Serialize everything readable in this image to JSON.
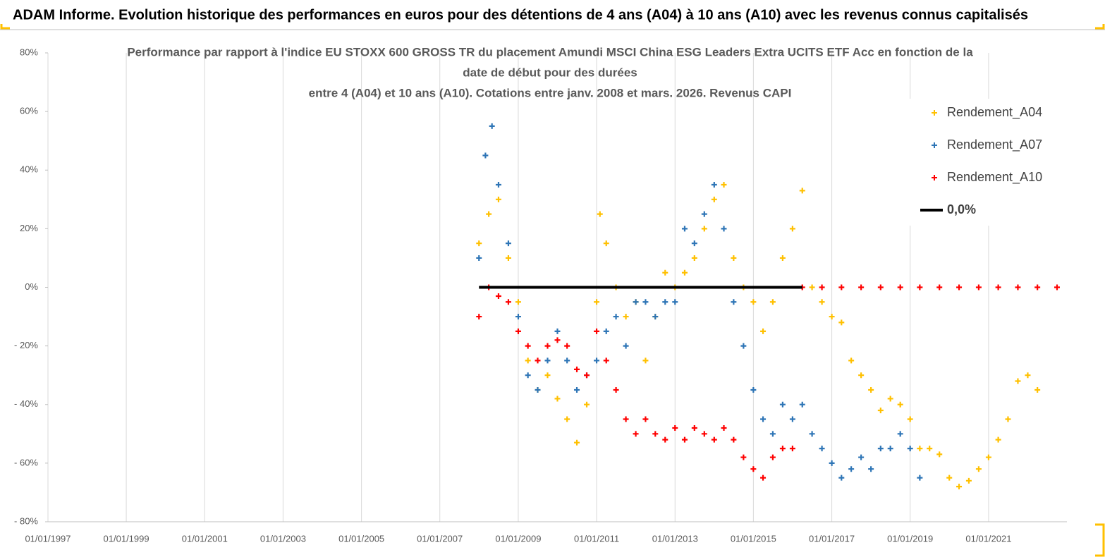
{
  "header": {
    "title": "ADAM Informe. Evolution historique des performances en euros pour des détentions de 4 ans (A04) à 10 ans (A10) avec les revenus connus capitalisés"
  },
  "chart_data": {
    "type": "scatter",
    "title_lines": [
      "Performance par rapport à l'indice EU STOXX 600 GROSS TR  du placement Amundi MSCI China ESG Leaders Extra UCITS ETF Acc en fonction de la",
      "date de début pour des durées",
      "entre 4 (A04) et 10 ans (A10). Cotations entre janv. 2008 et mars. 2026. Revenus CAPI"
    ],
    "xlim": [
      "1997-01-01",
      "2023-01-01"
    ],
    "xticks": [
      {
        "value": "1997-01-01",
        "label": "01/01/1997"
      },
      {
        "value": "1999-01-01",
        "label": "01/01/1999"
      },
      {
        "value": "2001-01-01",
        "label": "01/01/2001"
      },
      {
        "value": "2003-01-01",
        "label": "01/01/2003"
      },
      {
        "value": "2005-01-01",
        "label": "01/01/2005"
      },
      {
        "value": "2007-01-01",
        "label": "01/01/2007"
      },
      {
        "value": "2009-01-01",
        "label": "01/01/2009"
      },
      {
        "value": "2011-01-01",
        "label": "01/01/2011"
      },
      {
        "value": "2013-01-01",
        "label": "01/01/2013"
      },
      {
        "value": "2015-01-01",
        "label": "01/01/2015"
      },
      {
        "value": "2017-01-01",
        "label": "01/01/2017"
      },
      {
        "value": "2019-01-01",
        "label": "01/01/2019"
      },
      {
        "value": "2021-01-01",
        "label": "01/01/2021"
      }
    ],
    "ylim": [
      -80,
      80
    ],
    "yticks": [
      {
        "value": 80,
        "label": "80%"
      },
      {
        "value": 60,
        "label": "60%"
      },
      {
        "value": 40,
        "label": "40%"
      },
      {
        "value": 20,
        "label": "20%"
      },
      {
        "value": 0,
        "label": "0%"
      },
      {
        "value": -20,
        "label": "- 20%"
      },
      {
        "value": -40,
        "label": "- 40%"
      },
      {
        "value": -60,
        "label": "- 60%"
      },
      {
        "value": -80,
        "label": "- 80%"
      }
    ],
    "grid": "vertical",
    "legend": "top-right",
    "series": [
      {
        "name": "Rendement_A04",
        "color": "#FFC000",
        "mode": "markers",
        "x": [
          "2008-01-01",
          "2008-04-01",
          "2008-07-01",
          "2008-10-01",
          "2009-01-01",
          "2009-04-01",
          "2009-07-01",
          "2009-10-01",
          "2010-01-01",
          "2010-04-01",
          "2010-07-01",
          "2010-10-01",
          "2011-01-01",
          "2011-02-01",
          "2011-04-01",
          "2011-07-01",
          "2011-10-01",
          "2012-01-01",
          "2012-04-01",
          "2012-07-01",
          "2012-10-01",
          "2013-01-01",
          "2013-04-01",
          "2013-07-01",
          "2013-10-01",
          "2014-01-01",
          "2014-04-01",
          "2014-07-01",
          "2014-10-01",
          "2015-01-01",
          "2015-04-01",
          "2015-07-01",
          "2015-10-01",
          "2016-01-01",
          "2016-04-01",
          "2016-07-01",
          "2016-10-01",
          "2017-01-01",
          "2017-04-01",
          "2017-07-01",
          "2017-10-01",
          "2018-01-01",
          "2018-04-01",
          "2018-07-01",
          "2018-10-01",
          "2019-01-01",
          "2019-04-01",
          "2019-07-01",
          "2019-10-01",
          "2020-01-01",
          "2020-04-01",
          "2020-07-01",
          "2020-10-01",
          "2021-01-01",
          "2021-04-01",
          "2021-07-01",
          "2021-10-01",
          "2022-01-01",
          "2022-04-01"
        ],
        "values": [
          15,
          25,
          30,
          10,
          -5,
          -25,
          -35,
          -30,
          -38,
          -45,
          -53,
          -40,
          -5,
          25,
          15,
          0,
          -10,
          -5,
          -25,
          -10,
          5,
          0,
          5,
          10,
          20,
          30,
          35,
          10,
          0,
          -5,
          -15,
          -5,
          10,
          20,
          33,
          0,
          -5,
          -10,
          -12,
          -25,
          -30,
          -35,
          -42,
          -38,
          -40,
          -45,
          -55,
          -55,
          -57,
          -65,
          -68,
          -66,
          -62,
          -58,
          -52,
          -45,
          -32,
          -30,
          -35
        ]
      },
      {
        "name": "Rendement_A07",
        "color": "#2E75B6",
        "mode": "markers",
        "x": [
          "2008-01-01",
          "2008-03-01",
          "2008-05-01",
          "2008-07-01",
          "2008-10-01",
          "2009-01-01",
          "2009-04-01",
          "2009-07-01",
          "2009-10-01",
          "2010-01-01",
          "2010-04-01",
          "2010-07-01",
          "2010-10-01",
          "2011-01-01",
          "2011-04-01",
          "2011-07-01",
          "2011-10-01",
          "2012-01-01",
          "2012-04-01",
          "2012-07-01",
          "2012-10-01",
          "2013-01-01",
          "2013-04-01",
          "2013-07-01",
          "2013-10-01",
          "2014-01-01",
          "2014-04-01",
          "2014-07-01",
          "2014-10-01",
          "2015-01-01",
          "2015-04-01",
          "2015-07-01",
          "2015-10-01",
          "2016-01-01",
          "2016-04-01",
          "2016-07-01",
          "2016-10-01",
          "2017-01-01",
          "2017-04-01",
          "2017-07-01",
          "2017-10-01",
          "2018-01-01",
          "2018-04-01",
          "2018-07-01",
          "2018-10-01",
          "2019-01-01",
          "2019-04-01"
        ],
        "values": [
          10,
          45,
          55,
          35,
          15,
          -10,
          -30,
          -35,
          -25,
          -15,
          -25,
          -35,
          -30,
          -25,
          -15,
          -10,
          -20,
          -5,
          -5,
          -10,
          -5,
          -5,
          20,
          15,
          25,
          35,
          20,
          -5,
          -20,
          -35,
          -45,
          -50,
          -40,
          -45,
          -40,
          -50,
          -55,
          -60,
          -65,
          -62,
          -58,
          -62,
          -55,
          -55,
          -50,
          -55,
          -65
        ]
      },
      {
        "name": "Rendement_A10",
        "color": "#FF0000",
        "mode": "markers",
        "x": [
          "2008-01-01",
          "2008-04-01",
          "2008-07-01",
          "2008-10-01",
          "2009-01-01",
          "2009-04-01",
          "2009-07-01",
          "2009-10-01",
          "2010-01-01",
          "2010-04-01",
          "2010-07-01",
          "2010-10-01",
          "2011-01-01",
          "2011-04-01",
          "2011-07-01",
          "2011-10-01",
          "2012-01-01",
          "2012-04-01",
          "2012-07-01",
          "2012-10-01",
          "2013-01-01",
          "2013-04-01",
          "2013-07-01",
          "2013-10-01",
          "2014-01-01",
          "2014-04-01",
          "2014-07-01",
          "2014-10-01",
          "2015-01-01",
          "2015-04-01",
          "2015-07-01",
          "2015-10-01",
          "2016-01-01",
          "2016-04-01",
          "2016-10-01",
          "2017-04-01",
          "2017-10-01",
          "2018-04-01",
          "2018-10-01",
          "2019-04-01",
          "2019-10-01",
          "2020-04-01",
          "2020-10-01",
          "2021-04-01",
          "2021-10-01",
          "2022-04-01",
          "2022-10-01"
        ],
        "values": [
          -10,
          0,
          -3,
          -5,
          -15,
          -20,
          -25,
          -20,
          -18,
          -20,
          -28,
          -30,
          -15,
          -25,
          -35,
          -45,
          -50,
          -45,
          -50,
          -52,
          -48,
          -52,
          -48,
          -50,
          -52,
          -48,
          -52,
          -58,
          -62,
          -65,
          -58,
          -55,
          -55,
          0,
          0,
          0,
          0,
          0,
          0,
          0,
          0,
          0,
          0,
          0,
          0,
          0,
          0
        ]
      },
      {
        "name": "0,0%",
        "color": "#000000",
        "mode": "line",
        "x": [
          "2008-01-01",
          "2016-04-01"
        ],
        "values": [
          0,
          0
        ]
      }
    ]
  }
}
